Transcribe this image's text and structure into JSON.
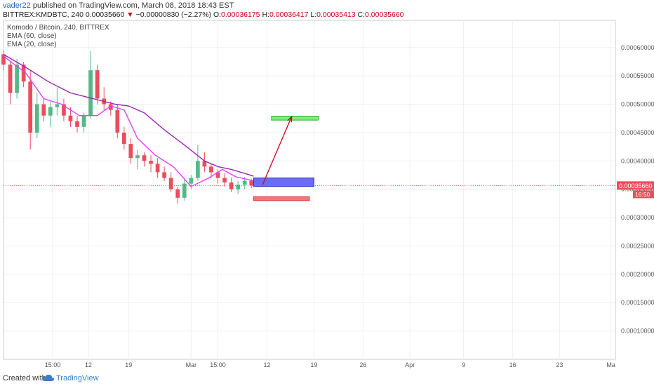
{
  "header": {
    "author": "vader22",
    "published_text": "published on TradingView.com, March 08, 2018 18:43 EST",
    "symbol": "BITTREX:KMDBTC, 240",
    "last_price": "0.00035660",
    "change_arrow": "▼",
    "change": "−0.00000830 (−2.27%)",
    "o_label": "O:",
    "o_value": "0.00036175",
    "h_label": "H:",
    "h_value": "0.00036417",
    "l_label": "L:",
    "l_value": "0.00035413",
    "c_label": "C:",
    "c_value": "0.00035660"
  },
  "legend": {
    "title": "Komodo / Bitcoin, 240, BITTREX",
    "ema60": "EMA (60, close)",
    "ema20": "EMA (20, close)"
  },
  "footer": {
    "created_with": "Created with",
    "brand": "TradingView"
  },
  "colors": {
    "up": "#53b987",
    "down": "#eb4d5c",
    "ema60": "#9c27b0",
    "ema20": "#e040fb",
    "price_line": "#eb4d5c",
    "entry_box": "#6b6bf5",
    "target_box": "#7ef07a",
    "stop_box": "#f27878",
    "arrow": "#d0021b",
    "grid": "#eef0f3"
  },
  "chart_data": {
    "type": "candlestick",
    "title": "Komodo / Bitcoin, 240, BITTREX",
    "ylim": [
      5e-05,
      0.000648
    ],
    "y_ticks": [
      "0.00060000",
      "0.00055000",
      "0.00050000",
      "0.00045000",
      "0.00040000",
      "0.00035000",
      "0.00030000",
      "0.00025000",
      "0.00020000",
      "0.00015000",
      "0.00010000"
    ],
    "y_tick_values": [
      0.0006,
      0.00055,
      0.0005,
      0.00045,
      0.0004,
      0.00035,
      0.0003,
      0.00025,
      0.0002,
      0.00015,
      0.0001
    ],
    "x_ticks": [
      "15:00",
      "12",
      "19",
      "Mar",
      "15:00",
      "12",
      "19",
      "26",
      "Apr",
      "9",
      "16",
      "23",
      "Ma"
    ],
    "x_tick_pos": [
      2.2,
      3.8,
      5.6,
      8.4,
      9.6,
      11.8,
      13.9,
      16.1,
      18.2,
      20.6,
      22.8,
      24.9,
      27.2
    ],
    "x_range_days": [
      0,
      27.4
    ],
    "current_price": 0.0003566,
    "current_price_label": "0.00035660",
    "countdown_label": "16:50",
    "candles_x": [
      0.0,
      0.3,
      0.6,
      0.9,
      1.2,
      1.5,
      1.8,
      2.1,
      2.4,
      2.7,
      3.0,
      3.3,
      3.6,
      3.9,
      4.2,
      4.5,
      4.8,
      5.1,
      5.4,
      5.7,
      6.0,
      6.3,
      6.6,
      6.9,
      7.2,
      7.5,
      7.8,
      8.1,
      8.4,
      8.7,
      9.0,
      9.3,
      9.6,
      9.9,
      10.2,
      10.5,
      10.8,
      11.1
    ],
    "candles_ohlc": [
      [
        0.000588,
        0.000595,
        0.00056,
        0.00057
      ],
      [
        0.00057,
        0.000575,
        0.0005,
        0.00052
      ],
      [
        0.00052,
        0.00058,
        0.00051,
        0.00057
      ],
      [
        0.00057,
        0.000575,
        0.00053,
        0.00054
      ],
      [
        0.00054,
        0.00056,
        0.00042,
        0.00045
      ],
      [
        0.00045,
        0.00052,
        0.00044,
        0.0005
      ],
      [
        0.0005,
        0.00051,
        0.00047,
        0.00048
      ],
      [
        0.00048,
        0.000505,
        0.00046,
        0.000495
      ],
      [
        0.000495,
        0.00053,
        0.00048,
        0.0005
      ],
      [
        0.0005,
        0.00051,
        0.00047,
        0.00048
      ],
      [
        0.00048,
        0.000495,
        0.00046,
        0.00047
      ],
      [
        0.00047,
        0.00048,
        0.00045,
        0.00046
      ],
      [
        0.00046,
        0.000485,
        0.00045,
        0.00048
      ],
      [
        0.00048,
        0.000594,
        0.000475,
        0.00056
      ],
      [
        0.00056,
        0.00057,
        0.0005,
        0.00051
      ],
      [
        0.00051,
        0.00053,
        0.00049,
        0.0005
      ],
      [
        0.0005,
        0.000505,
        0.00048,
        0.00049
      ],
      [
        0.00049,
        0.0005,
        0.00044,
        0.00045
      ],
      [
        0.00045,
        0.00046,
        0.00042,
        0.00043
      ],
      [
        0.00043,
        0.00044,
        0.000395,
        0.000405
      ],
      [
        0.000405,
        0.00042,
        0.000385,
        0.00041
      ],
      [
        0.00041,
        0.000415,
        0.00039,
        0.0004
      ],
      [
        0.0004,
        0.00041,
        0.00038,
        0.000395
      ],
      [
        0.000395,
        0.000405,
        0.00037,
        0.00038
      ],
      [
        0.00038,
        0.00039,
        0.000365,
        0.00037
      ],
      [
        0.00037,
        0.00038,
        0.000345,
        0.00035
      ],
      [
        0.00035,
        0.000355,
        0.000325,
        0.000335
      ],
      [
        0.000335,
        0.00037,
        0.00033,
        0.00036
      ],
      [
        0.00036,
        0.000375,
        0.00035,
        0.00037
      ],
      [
        0.00037,
        0.000428,
        0.000365,
        0.0004
      ],
      [
        0.0004,
        0.000415,
        0.00038,
        0.00039
      ],
      [
        0.00039,
        0.000395,
        0.00037,
        0.00038
      ],
      [
        0.00038,
        0.000385,
        0.00036,
        0.00037
      ],
      [
        0.00037,
        0.000378,
        0.000355,
        0.000362
      ],
      [
        0.000362,
        0.00037,
        0.000345,
        0.00035
      ],
      [
        0.00035,
        0.000365,
        0.000342,
        0.000358
      ],
      [
        0.000358,
        0.000372,
        0.00035,
        0.000365
      ],
      [
        0.000365,
        0.000368,
        0.000352,
        0.000357
      ]
    ],
    "ema60": [
      [
        0.0,
        0.000588
      ],
      [
        1.0,
        0.000565
      ],
      [
        2.0,
        0.00054
      ],
      [
        3.0,
        0.00052
      ],
      [
        4.0,
        0.00051
      ],
      [
        5.0,
        0.0005
      ],
      [
        5.6,
        0.000497
      ],
      [
        6.3,
        0.000485
      ],
      [
        7.2,
        0.000455
      ],
      [
        8.2,
        0.000425
      ],
      [
        9.0,
        0.0004
      ],
      [
        9.6,
        0.00039
      ],
      [
        10.2,
        0.000385
      ],
      [
        10.8,
        0.000378
      ],
      [
        11.2,
        0.000373
      ]
    ],
    "ema20": [
      [
        0.0,
        0.000585
      ],
      [
        1.0,
        0.000555
      ],
      [
        1.8,
        0.00051
      ],
      [
        2.6,
        0.0005
      ],
      [
        3.4,
        0.00048
      ],
      [
        4.2,
        0.00048
      ],
      [
        4.8,
        0.000497
      ],
      [
        5.4,
        0.00049
      ],
      [
        6.0,
        0.00044
      ],
      [
        6.8,
        0.00041
      ],
      [
        7.6,
        0.00039
      ],
      [
        8.4,
        0.000355
      ],
      [
        9.2,
        0.00037
      ],
      [
        9.8,
        0.000385
      ],
      [
        10.4,
        0.000372
      ],
      [
        11.2,
        0.000365
      ]
    ],
    "drawings": {
      "entry_box": {
        "x": [
          11.2,
          13.9
        ],
        "y": [
          0.000355,
          0.00037
        ]
      },
      "target_box": {
        "x": [
          12.0,
          14.1
        ],
        "y": [
          0.000472,
          0.000479
        ]
      },
      "stop_box": {
        "x": [
          11.2,
          13.7
        ],
        "y": [
          0.00033,
          0.000337
        ]
      },
      "arrow": {
        "from": [
          11.6,
          0.000358
        ],
        "to": [
          12.9,
          0.000478
        ]
      }
    }
  }
}
